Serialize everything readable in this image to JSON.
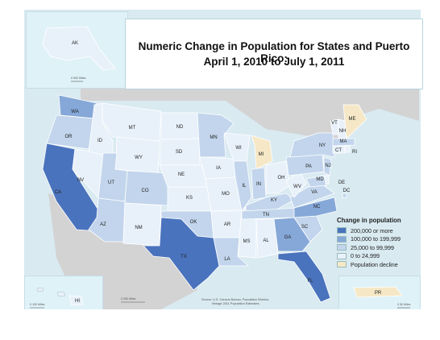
{
  "title": {
    "line1": "Numeric Change in Population for States and Puerto Rico:",
    "line2": "April 1, 2010 to July 1, 2011"
  },
  "legend": {
    "title": "Change in population",
    "items": [
      {
        "label": "200,000 or more",
        "color": "#4a73bd"
      },
      {
        "label": "100,000 to 199,999",
        "color": "#86a8d8"
      },
      {
        "label": "25,000 to 99,999",
        "color": "#c2d5ec"
      },
      {
        "label": "0 to 24,999",
        "color": "#e8f1fa"
      },
      {
        "label": "Population decline",
        "color": "#f6e8c6"
      }
    ]
  },
  "colors": {
    "c200k": "#4a73bd",
    "c100k": "#86a8d8",
    "c25k": "#c2d5ec",
    "c0": "#e8f1fa",
    "decline": "#f6e8c6",
    "water": "#d9eaf1",
    "land": "#cfcfcf",
    "border": "#ffffff"
  },
  "states": {
    "WA": "WA",
    "OR": "OR",
    "CA": "CA",
    "NV": "NV",
    "ID": "ID",
    "MT": "MT",
    "WY": "WY",
    "UT": "UT",
    "AZ": "AZ",
    "CO": "CO",
    "NM": "NM",
    "ND": "ND",
    "SD": "SD",
    "NE": "NE",
    "KS": "KS",
    "OK": "OK",
    "TX": "TX",
    "MN": "MN",
    "IA": "IA",
    "MO": "MO",
    "AR": "AR",
    "LA": "LA",
    "WI": "WI",
    "IL": "IL",
    "MS": "MS",
    "MI": "MI",
    "IN": "IN",
    "KY": "KY",
    "TN": "TN",
    "AL": "AL",
    "OH": "OH",
    "GA": "GA",
    "FL": "FL",
    "SC": "SC",
    "NC": "NC",
    "VA": "VA",
    "WV": "WV",
    "PA": "PA",
    "NY": "NY",
    "VT": "VT",
    "NH": "NH",
    "ME": "ME",
    "MA": "MA",
    "RI": "RI",
    "CT": "CT",
    "NJ": "NJ",
    "DE": "DE",
    "MD": "MD",
    "DC": "DC",
    "AK": "AK",
    "HI": "HI",
    "PR": "PR"
  },
  "scales": {
    "alaska": "0    500 Miles",
    "main": "0        250 Miles",
    "hawaii": "0    100 Miles",
    "pr": "0   50 Miles"
  },
  "source": {
    "line1": "Source: U.S. Census Bureau, Population Division,",
    "line2": "Vintage 2011 Population Estimates"
  }
}
